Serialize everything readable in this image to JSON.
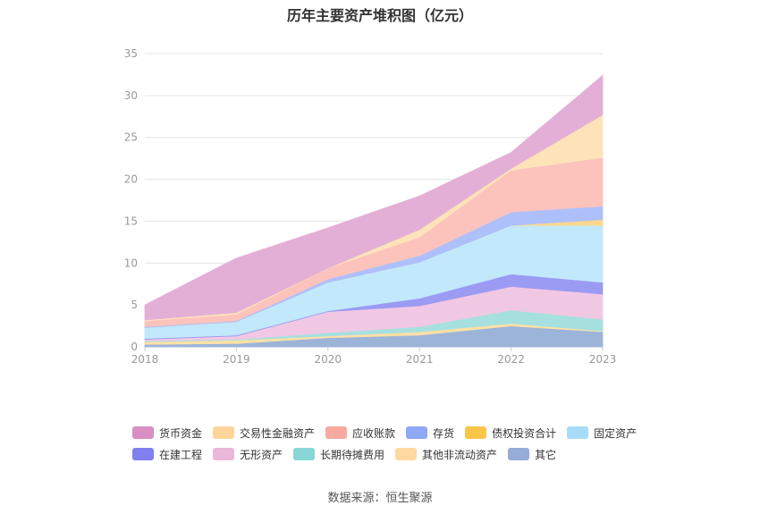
{
  "chart_data": {
    "type": "area",
    "stacked": true,
    "title": "历年主要资产堆积图（亿元）",
    "x": [
      "2018",
      "2019",
      "2020",
      "2021",
      "2022",
      "2023"
    ],
    "ylim": [
      0,
      35
    ],
    "yticks": [
      0,
      5,
      10,
      15,
      20,
      25,
      30,
      35
    ],
    "grid": true,
    "legend_position": "bottom",
    "series": [
      {
        "name": "其它",
        "color": "#9db4d9",
        "values": [
          0.3,
          0.4,
          1.1,
          1.4,
          2.5,
          1.8
        ]
      },
      {
        "name": "其他非流动资产",
        "color": "#ffe0a6",
        "values": [
          0.3,
          0.4,
          0.2,
          0.4,
          0.3,
          0.1
        ]
      },
      {
        "name": "长期待摊费用",
        "color": "#a6e0df",
        "values": [
          0.1,
          0.1,
          0.4,
          0.6,
          1.6,
          1.4
        ]
      },
      {
        "name": "无形资产",
        "color": "#f1c8e3",
        "values": [
          0.2,
          0.4,
          2.5,
          2.5,
          2.8,
          3.0
        ]
      },
      {
        "name": "在建工程",
        "color": "#9b9bf3",
        "values": [
          0.1,
          0.1,
          0.1,
          0.9,
          1.5,
          1.4
        ]
      },
      {
        "name": "固定资产",
        "color": "#c2e8fb",
        "values": [
          1.3,
          1.6,
          3.4,
          4.3,
          5.8,
          6.8
        ]
      },
      {
        "name": "债权投资合计",
        "color": "#ffd78a",
        "values": [
          0.0,
          0.0,
          0.0,
          0.0,
          0.0,
          0.7
        ]
      },
      {
        "name": "存货",
        "color": "#aec0fb",
        "values": [
          0.1,
          0.1,
          0.4,
          0.8,
          1.6,
          1.6
        ]
      },
      {
        "name": "应收账款",
        "color": "#fcc3bd",
        "values": [
          0.7,
          0.8,
          1.3,
          2.2,
          5.0,
          5.8
        ]
      },
      {
        "name": "交易性金融资产",
        "color": "#fee3b9",
        "values": [
          0.1,
          0.2,
          0.0,
          0.9,
          0.2,
          5.1
        ]
      },
      {
        "name": "货币资金",
        "color": "#e4afd6",
        "values": [
          1.8,
          6.5,
          4.8,
          4.0,
          1.9,
          4.7
        ]
      }
    ],
    "legend_rows": [
      [
        "货币资金",
        "交易性金融资产",
        "应收账款",
        "存货",
        "债权投资合计",
        "固定资产"
      ],
      [
        "在建工程",
        "无形资产",
        "长期待摊费用",
        "其他非流动资产",
        "其它"
      ]
    ],
    "legend_colors": {
      "货币资金": "#d98fc4",
      "交易性金融资产": "#fdd59a",
      "应收账款": "#f8a9a0",
      "存货": "#8fa9f7",
      "债权投资合计": "#fbc54a",
      "固定资产": "#a6dcf8",
      "在建工程": "#7f80ee",
      "无形资产": "#eab6da",
      "长期待摊费用": "#88d6d6",
      "其他非流动资产": "#fed8a0",
      "其它": "#95acd6"
    }
  },
  "source": "数据来源：恒生聚源"
}
